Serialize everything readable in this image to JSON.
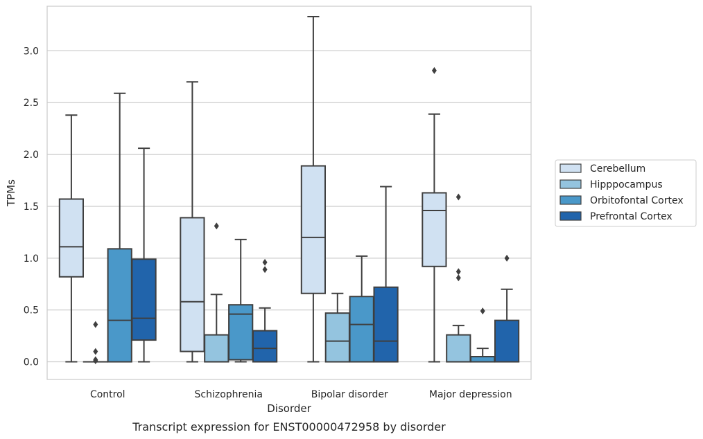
{
  "chart_data": {
    "type": "box",
    "xlabel": "Disorder",
    "ylabel": "TPMs",
    "caption": "Transcript expression for ENST00000472958 by disorder",
    "ylim": [
      -0.17,
      3.43
    ],
    "yticks": [
      0.0,
      0.5,
      1.0,
      1.5,
      2.0,
      2.5,
      3.0
    ],
    "ytick_labels": [
      "0.0",
      "0.5",
      "1.0",
      "1.5",
      "2.0",
      "2.5",
      "3.0"
    ],
    "grid": "horizontal",
    "legend_position": "right",
    "categories": [
      "Control",
      "Schizophrenia",
      "Bipolar disorder",
      "Major depression"
    ],
    "series": [
      {
        "name": "Cerebellum",
        "color": "#d0e1f2",
        "boxes": [
          {
            "whislo": 0.0,
            "q1": 0.82,
            "med": 1.11,
            "q3": 1.57,
            "whishi": 2.38,
            "fliers": []
          },
          {
            "whislo": 0.0,
            "q1": 0.1,
            "med": 0.58,
            "q3": 1.39,
            "whishi": 2.7,
            "fliers": []
          },
          {
            "whislo": 0.0,
            "q1": 0.66,
            "med": 1.2,
            "q3": 1.89,
            "whishi": 3.33,
            "fliers": []
          },
          {
            "whislo": 0.0,
            "q1": 0.92,
            "med": 1.46,
            "q3": 1.63,
            "whishi": 2.39,
            "fliers": [
              2.81
            ]
          }
        ]
      },
      {
        "name": "Hipppocampus",
        "color": "#94c4df",
        "boxes": [
          {
            "whislo": 0.0,
            "q1": 0.0,
            "med": 0.0,
            "q3": 0.0,
            "whishi": 0.0,
            "fliers": [
              0.36,
              0.1,
              0.02,
              0.01
            ]
          },
          {
            "whislo": 0.0,
            "q1": 0.0,
            "med": 0.0,
            "q3": 0.26,
            "whishi": 0.65,
            "fliers": [
              1.31
            ]
          },
          {
            "whislo": 0.0,
            "q1": 0.0,
            "med": 0.2,
            "q3": 0.47,
            "whishi": 0.66,
            "fliers": []
          },
          {
            "whislo": 0.0,
            "q1": 0.0,
            "med": 0.0,
            "q3": 0.26,
            "whishi": 0.35,
            "fliers": [
              1.59,
              0.87,
              0.81
            ]
          }
        ]
      },
      {
        "name": "Orbitofontal Cortex",
        "color": "#4a98c9",
        "boxes": [
          {
            "whislo": 0.0,
            "q1": 0.0,
            "med": 0.4,
            "q3": 1.09,
            "whishi": 2.59,
            "fliers": []
          },
          {
            "whislo": 0.0,
            "q1": 0.02,
            "med": 0.46,
            "q3": 0.55,
            "whishi": 1.18,
            "fliers": []
          },
          {
            "whislo": 0.0,
            "q1": 0.0,
            "med": 0.36,
            "q3": 0.63,
            "whishi": 1.02,
            "fliers": []
          },
          {
            "whislo": 0.0,
            "q1": 0.0,
            "med": 0.05,
            "q3": 0.05,
            "whishi": 0.13,
            "fliers": [
              0.49
            ]
          }
        ]
      },
      {
        "name": "Prefrontal Cortex",
        "color": "#2164ab",
        "boxes": [
          {
            "whislo": 0.0,
            "q1": 0.21,
            "med": 0.42,
            "q3": 0.99,
            "whishi": 2.06,
            "fliers": []
          },
          {
            "whislo": 0.0,
            "q1": 0.0,
            "med": 0.13,
            "q3": 0.3,
            "whishi": 0.52,
            "fliers": [
              0.96,
              0.89
            ]
          },
          {
            "whislo": 0.0,
            "q1": 0.0,
            "med": 0.2,
            "q3": 0.72,
            "whishi": 1.69,
            "fliers": []
          },
          {
            "whislo": 0.0,
            "q1": 0.0,
            "med": 0.0,
            "q3": 0.4,
            "whishi": 0.7,
            "fliers": [
              1.0
            ]
          }
        ]
      }
    ]
  }
}
